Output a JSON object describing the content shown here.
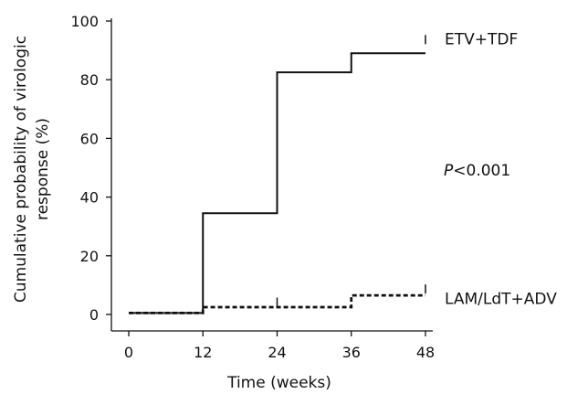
{
  "chart_data": {
    "type": "line",
    "subtype": "step",
    "xlabel": "Time (weeks)",
    "ylabel_line1": "Cumulative probability of virologic",
    "ylabel_line2": "response (%)",
    "xlim": [
      0,
      48
    ],
    "ylim": [
      0,
      100
    ],
    "xticks": [
      0,
      12,
      24,
      36,
      48
    ],
    "yticks": [
      0,
      20,
      40,
      60,
      80,
      100
    ],
    "grid": false,
    "legend": "inline labels at right end of each curve",
    "annotation": {
      "italic": "P",
      "rest": "<0.001"
    },
    "series": [
      {
        "name": "ETV+TDF",
        "style": "solid",
        "color": "#111111",
        "x": [
          0,
          12,
          24,
          36,
          48
        ],
        "y": [
          0.5,
          34.5,
          82.5,
          89,
          89
        ],
        "censor_marks": [
          {
            "x": 48,
            "y": 94
          }
        ]
      },
      {
        "name": "LAM/LdT+ADV",
        "style": "dashed",
        "color": "#111111",
        "x": [
          0,
          12,
          36,
          48
        ],
        "y": [
          0.5,
          2.5,
          6.5,
          6.5
        ],
        "censor_marks": [
          {
            "x": 24,
            "y": 4.5
          },
          {
            "x": 48,
            "y": 9
          }
        ]
      }
    ]
  }
}
